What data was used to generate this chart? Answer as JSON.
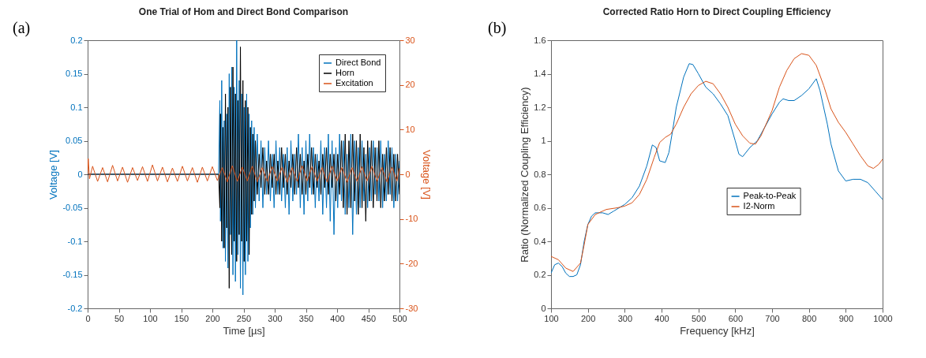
{
  "chart_data": [
    {
      "type": "line",
      "title": "One Trial of Hom and Direct Bond Comparison",
      "xlabel": "Time [µs]",
      "ylabel": "Voltage [V]",
      "y2label": "Voltage [V]",
      "annotations": [
        "(a)"
      ],
      "xlim": [
        0,
        500
      ],
      "xticks": [
        0,
        50,
        100,
        150,
        200,
        250,
        300,
        350,
        400,
        450,
        500
      ],
      "ylim": [
        -0.2,
        0.2
      ],
      "yticks": [
        -0.2,
        -0.15,
        -0.1,
        -0.05,
        0,
        0.05,
        0.1,
        0.15,
        0.2
      ],
      "y2lim": [
        -30,
        30
      ],
      "y2ticks": [
        -30,
        -20,
        -10,
        0,
        10,
        20,
        30
      ],
      "grid": false,
      "legend": "top right",
      "marker": "none",
      "line_style": "solid",
      "x": [
        0,
        210,
        212,
        213,
        215,
        217,
        219,
        221,
        223,
        225,
        227,
        229,
        231,
        233,
        235,
        237,
        239,
        241,
        243,
        245,
        247,
        249,
        251,
        253,
        255,
        257,
        259,
        261,
        263,
        265,
        267,
        269,
        272,
        275,
        278,
        281,
        284,
        287,
        290,
        293,
        296,
        299,
        302,
        305,
        308,
        311,
        314,
        317,
        320,
        323,
        326,
        329,
        332,
        335,
        338,
        341,
        344,
        347,
        350,
        353,
        356,
        359,
        362,
        365,
        368,
        371,
        374,
        377,
        380,
        383,
        386,
        389,
        392,
        395,
        398,
        401,
        404,
        407,
        410,
        413,
        416,
        419,
        422,
        425,
        428,
        431,
        434,
        437,
        440,
        443,
        446,
        449,
        452,
        455,
        458,
        461,
        464,
        467,
        470,
        473,
        476,
        479,
        482,
        485,
        488,
        491,
        494,
        497,
        500
      ],
      "series": [
        {
          "name": "Direct Bond",
          "color": "#0072bd",
          "values": [
            0,
            0,
            0.11,
            -0.07,
            0.14,
            -0.11,
            0.08,
            -0.13,
            0.09,
            -0.14,
            0.15,
            -0.09,
            0.16,
            -0.15,
            0.13,
            -0.16,
            0.2,
            -0.12,
            0.14,
            -0.17,
            0.12,
            -0.18,
            0.1,
            -0.15,
            0.12,
            -0.13,
            0.09,
            -0.08,
            0.08,
            -0.06,
            0.07,
            -0.05,
            0.06,
            -0.04,
            0.05,
            -0.05,
            0.04,
            -0.03,
            0.05,
            -0.04,
            0.03,
            -0.05,
            0.05,
            -0.03,
            0.04,
            -0.04,
            0.03,
            -0.05,
            0.04,
            -0.06,
            0.05,
            -0.04,
            0.03,
            -0.03,
            0.06,
            -0.05,
            0.04,
            -0.06,
            0.05,
            -0.04,
            0.06,
            -0.03,
            0.04,
            -0.05,
            0.03,
            -0.04,
            0.05,
            -0.06,
            0.04,
            -0.05,
            0.06,
            -0.07,
            0.05,
            -0.09,
            0.04,
            -0.05,
            0.06,
            -0.04,
            0.05,
            -0.06,
            0.03,
            -0.05,
            0.06,
            -0.09,
            0.05,
            -0.06,
            0.04,
            -0.05,
            0.05,
            -0.04,
            0.03,
            -0.05,
            0.04,
            -0.04,
            0.05,
            -0.03,
            0.04,
            -0.04,
            0.05,
            -0.05,
            0.03,
            -0.04,
            0.05,
            -0.03,
            0.04,
            -0.05,
            0.03,
            -0.04,
            0.02
          ]
        },
        {
          "name": "Horn",
          "color": "#000000",
          "values": [
            0,
            0,
            -0.05,
            0.09,
            -0.1,
            0.07,
            -0.11,
            0.12,
            -0.08,
            0.1,
            -0.17,
            0.13,
            -0.12,
            0.16,
            -0.1,
            0.12,
            -0.13,
            0.11,
            -0.09,
            0.19,
            -0.1,
            0.14,
            -0.13,
            0.11,
            -0.1,
            0.1,
            -0.12,
            0.07,
            -0.06,
            0.06,
            -0.04,
            0.05,
            -0.03,
            0.03,
            -0.02,
            0.04,
            -0.03,
            0.02,
            -0.03,
            0.03,
            -0.02,
            0.03,
            -0.03,
            0.02,
            -0.03,
            0.04,
            -0.02,
            0.03,
            -0.03,
            0.02,
            -0.02,
            0.03,
            -0.03,
            0.04,
            -0.02,
            0.03,
            -0.03,
            0.02,
            -0.03,
            0.03,
            -0.02,
            0.04,
            -0.03,
            0.03,
            -0.02,
            0.02,
            -0.03,
            0.03,
            -0.02,
            0.04,
            -0.03,
            0.03,
            -0.02,
            0.03,
            -0.04,
            0.03,
            -0.03,
            0.05,
            -0.05,
            0.06,
            -0.06,
            0.05,
            -0.05,
            0.06,
            -0.04,
            0.05,
            -0.06,
            0.06,
            -0.05,
            0.04,
            -0.07,
            0.05,
            -0.04,
            0.05,
            -0.05,
            0.04,
            -0.04,
            0.05,
            -0.05,
            0.03,
            -0.04,
            0.04,
            -0.03,
            0.04,
            -0.04,
            0.03,
            -0.04,
            0.03,
            -0.03
          ]
        },
        {
          "name": "Excitation",
          "color": "#d95319",
          "axis": "y2",
          "x": [
            0,
            1,
            3,
            8,
            16,
            24,
            32,
            40,
            48,
            56,
            64,
            72,
            80,
            88,
            96,
            104,
            112,
            120,
            128,
            136,
            144,
            152,
            160,
            168,
            176,
            184,
            192,
            200,
            208,
            216,
            224,
            232,
            240,
            248,
            256,
            264,
            272,
            280,
            288,
            296,
            304,
            312,
            320,
            328,
            336,
            344,
            352,
            360,
            368,
            376,
            384,
            392,
            400,
            408,
            416,
            424,
            432,
            440,
            448,
            456,
            464,
            472,
            480,
            488,
            496,
            500
          ],
          "values": [
            0,
            3.5,
            -1,
            1.8,
            -1.6,
            1.5,
            -1.7,
            2.0,
            -1.5,
            1.6,
            -1.8,
            1.5,
            -1.4,
            1.7,
            -1.6,
            2.1,
            -1.5,
            1.6,
            -1.7,
            1.4,
            -1.6,
            1.8,
            -1.5,
            1.5,
            -1.8,
            1.6,
            -1.5,
            1.7,
            -1.4,
            1.5,
            -1.7,
            1.9,
            -1.6,
            1.6,
            -1.5,
            1.8,
            -1.7,
            1.5,
            -1.6,
            1.7,
            -1.5,
            1.6,
            -1.8,
            1.5,
            -1.6,
            1.9,
            -1.5,
            1.7,
            -1.6,
            1.5,
            -1.7,
            1.8,
            -1.5,
            1.6,
            -1.8,
            1.5,
            -1.6,
            1.7,
            -1.5,
            1.8,
            -1.6,
            1.5,
            -1.7,
            1.6,
            -1.5,
            1.4
          ]
        }
      ]
    },
    {
      "type": "line",
      "title": "Corrected Ratio Horn to Direct Coupling Efficiency",
      "xlabel": "Frequency [kHz]",
      "ylabel": "Ratio (Normalized Coupling Efficiency)",
      "annotations": [
        "(b)"
      ],
      "xlim": [
        100,
        1000
      ],
      "xticks": [
        100,
        200,
        300,
        400,
        500,
        600,
        700,
        800,
        900,
        1000
      ],
      "ylim": [
        0,
        1.6
      ],
      "yticks": [
        0,
        0.2,
        0.4,
        0.6,
        0.8,
        1,
        1.2,
        1.4,
        1.6
      ],
      "grid": false,
      "legend": "right",
      "marker": "none",
      "line_style": "solid",
      "series": [
        {
          "name": "Peak-to-Peak",
          "color": "#0072bd",
          "x": [
            100,
            110,
            120,
            130,
            140,
            150,
            160,
            170,
            180,
            190,
            200,
            210,
            220,
            240,
            255,
            270,
            300,
            320,
            340,
            360,
            375,
            385,
            395,
            410,
            420,
            430,
            440,
            460,
            475,
            485,
            500,
            520,
            540,
            560,
            580,
            600,
            610,
            620,
            640,
            660,
            680,
            700,
            720,
            730,
            745,
            760,
            780,
            800,
            820,
            830,
            850,
            860,
            880,
            900,
            920,
            940,
            960,
            980,
            1000
          ],
          "values": [
            0.21,
            0.26,
            0.27,
            0.25,
            0.21,
            0.19,
            0.19,
            0.2,
            0.26,
            0.4,
            0.5,
            0.55,
            0.57,
            0.57,
            0.56,
            0.58,
            0.62,
            0.66,
            0.73,
            0.85,
            0.975,
            0.96,
            0.88,
            0.87,
            0.93,
            1.06,
            1.2,
            1.38,
            1.46,
            1.455,
            1.4,
            1.32,
            1.28,
            1.22,
            1.15,
            1.0,
            0.92,
            0.905,
            0.96,
            1.0,
            1.08,
            1.16,
            1.23,
            1.25,
            1.24,
            1.24,
            1.27,
            1.31,
            1.37,
            1.3,
            1.1,
            0.98,
            0.82,
            0.76,
            0.77,
            0.77,
            0.75,
            0.7,
            0.65
          ]
        },
        {
          "name": "I2-Norm",
          "color": "#d95319",
          "x": [
            100,
            120,
            140,
            160,
            180,
            190,
            200,
            220,
            250,
            280,
            300,
            320,
            340,
            360,
            380,
            395,
            410,
            425,
            440,
            460,
            480,
            500,
            520,
            540,
            560,
            580,
            600,
            620,
            640,
            655,
            670,
            700,
            720,
            740,
            760,
            780,
            800,
            820,
            840,
            860,
            880,
            900,
            920,
            940,
            960,
            975,
            990,
            1000
          ],
          "values": [
            0.31,
            0.29,
            0.24,
            0.22,
            0.27,
            0.38,
            0.5,
            0.56,
            0.59,
            0.6,
            0.61,
            0.63,
            0.68,
            0.77,
            0.9,
            0.99,
            1.02,
            1.04,
            1.1,
            1.2,
            1.28,
            1.33,
            1.355,
            1.34,
            1.28,
            1.2,
            1.1,
            1.03,
            0.985,
            0.98,
            1.03,
            1.18,
            1.32,
            1.42,
            1.49,
            1.52,
            1.51,
            1.45,
            1.33,
            1.19,
            1.11,
            1.05,
            0.98,
            0.91,
            0.85,
            0.835,
            0.86,
            0.89
          ]
        }
      ]
    }
  ]
}
